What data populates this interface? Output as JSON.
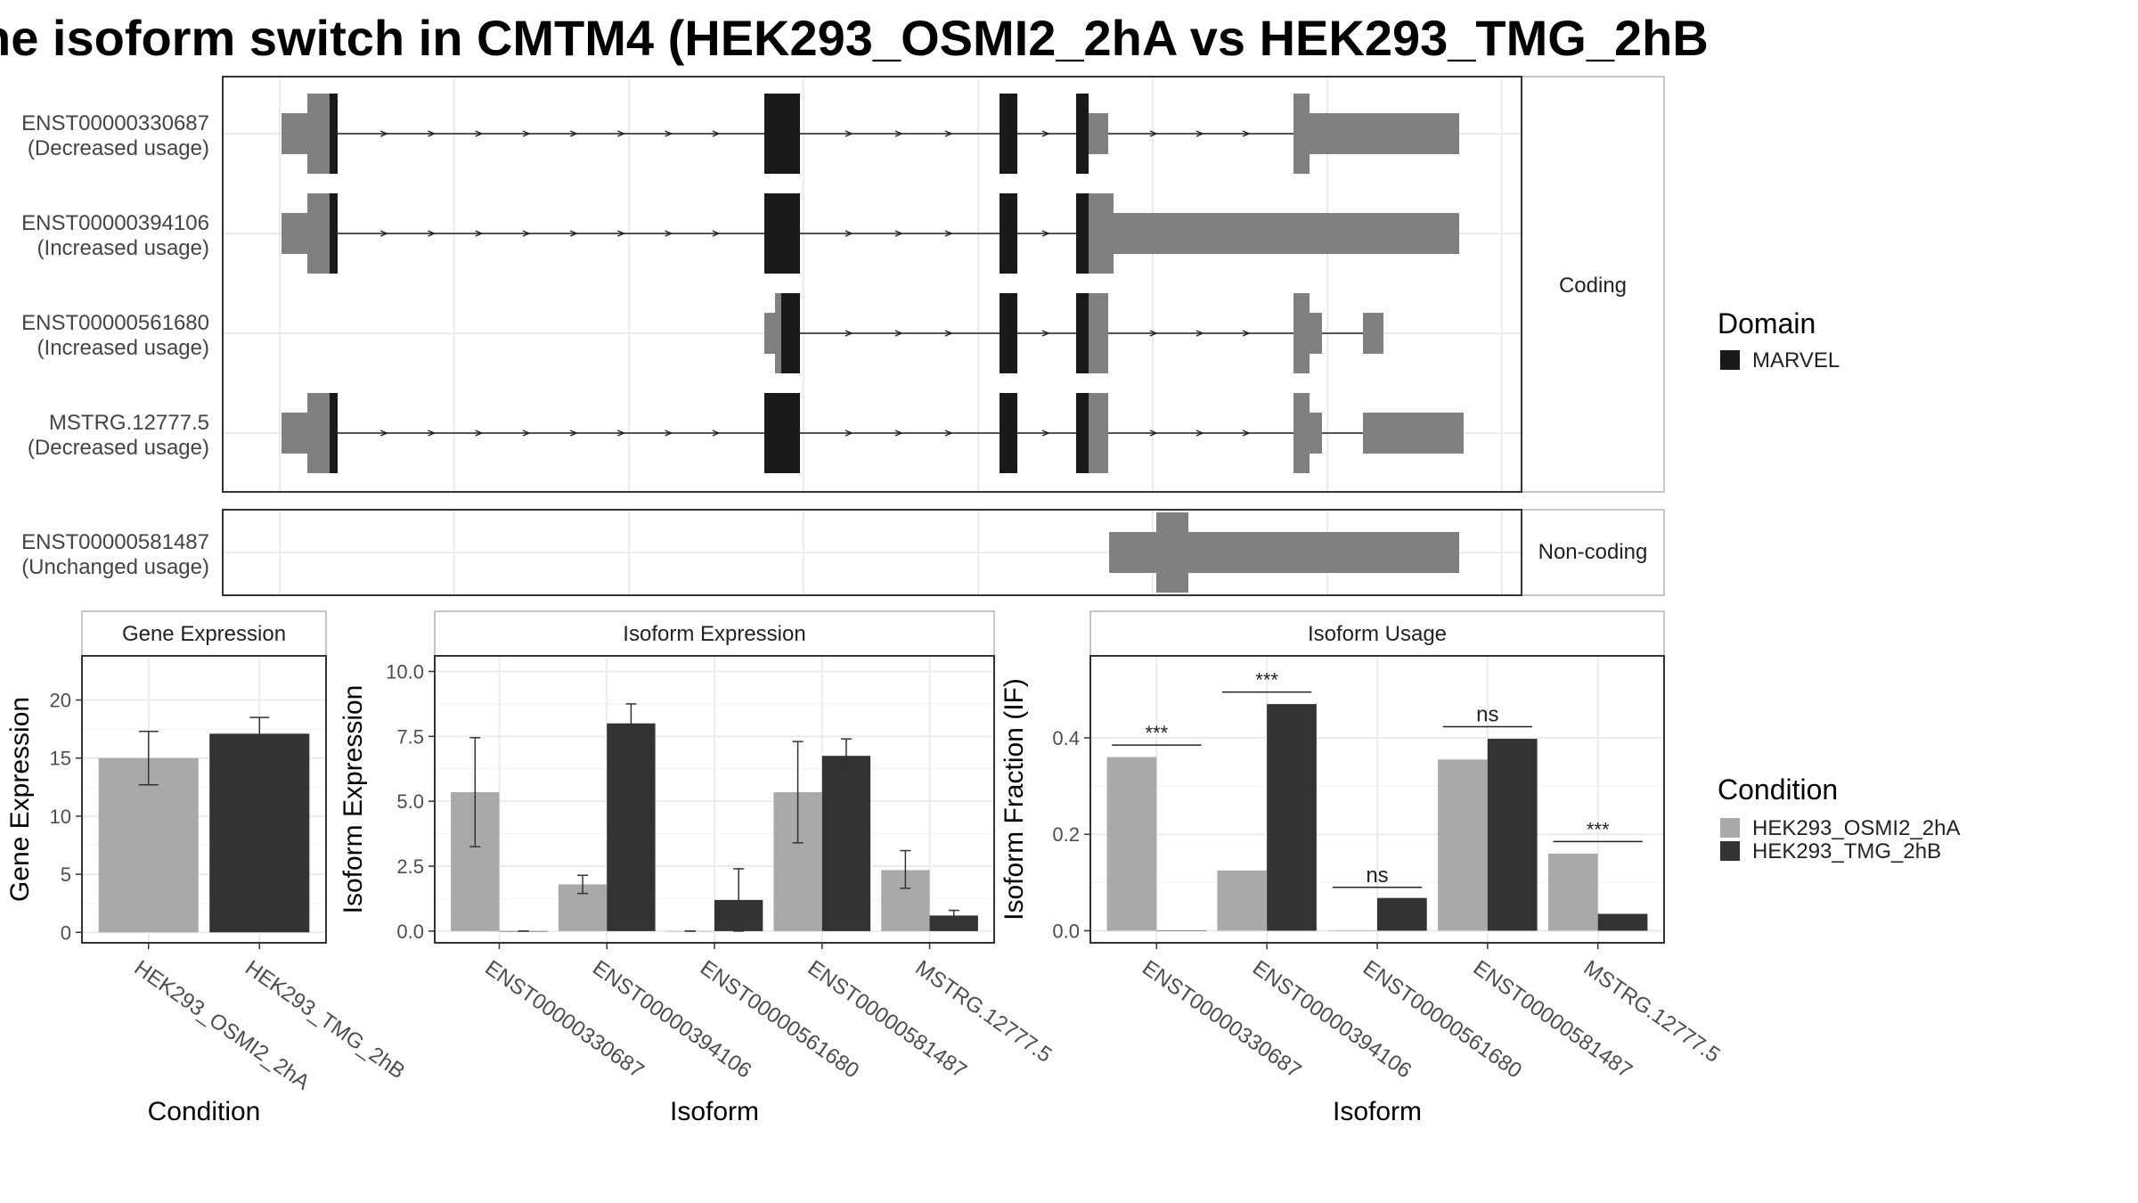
{
  "title": "he isoform switch in CMTM4 (HEK293_OSMI2_2hA vs HEK293_TMG_2hB",
  "colors": {
    "exon_grey": "#808080",
    "domain": "#191919",
    "cond1": "#a9a9a9",
    "cond2": "#333333",
    "grid": "#ebebeb",
    "strip": "#ffffff",
    "border": "#333333"
  },
  "domain_legend": {
    "title": "Domain",
    "items": [
      {
        "label": "MARVEL",
        "color": "#191919"
      }
    ]
  },
  "condition_legend": {
    "title": "Condition",
    "items": [
      {
        "label": "HEK293_OSMI2_2hA",
        "color": "#a9a9a9"
      },
      {
        "label": "HEK293_TMG_2hB",
        "color": "#333333"
      }
    ]
  },
  "transcript_panels": [
    {
      "strip": "Coding",
      "transcripts": [
        {
          "id": "ENST00000330687",
          "usage": "(Decreased usage)"
        },
        {
          "id": "ENST00000394106",
          "usage": "(Increased usage)"
        },
        {
          "id": "ENST00000561680",
          "usage": "(Increased usage)"
        },
        {
          "id": "MSTRG.12777.5",
          "usage": "(Decreased usage)"
        }
      ]
    },
    {
      "strip": "Non-coding",
      "transcripts": [
        {
          "id": "ENST00000581487",
          "usage": "(Unchanged usage)"
        }
      ]
    }
  ],
  "chart_data": [
    {
      "type": "bar",
      "title": "Gene Expression",
      "xlabel": "Condition",
      "ylabel": "Gene Expression",
      "categories": [
        "HEK293_OSMI2_2hA",
        "HEK293_TMG_2hB"
      ],
      "values": [
        15.0,
        17.1
      ],
      "error_low": [
        12.7,
        15.7
      ],
      "error_high": [
        17.3,
        18.5
      ],
      "ylim": [
        -0.9,
        23.8
      ],
      "yticks": [
        0,
        5,
        10,
        15,
        20
      ],
      "ytick_labels": [
        "0",
        "5",
        "10",
        "15",
        "20"
      ],
      "grid": true
    },
    {
      "type": "bar",
      "title": "Isoform Expression",
      "xlabel": "Isoform",
      "ylabel": "Isoform Expression",
      "categories": [
        "ENST00000330687",
        "ENST00000394106",
        "ENST00000561680",
        "ENST00000581487",
        "MSTRG.12777.5"
      ],
      "series": [
        {
          "name": "HEK293_OSMI2_2hA",
          "values": [
            5.35,
            1.8,
            0.0,
            5.35,
            2.35
          ],
          "error_low": [
            3.25,
            1.45,
            0.0,
            3.4,
            1.65
          ],
          "error_high": [
            7.45,
            2.15,
            0.0,
            7.3,
            3.1
          ]
        },
        {
          "name": "HEK293_TMG_2hB",
          "values": [
            0.0,
            8.0,
            1.2,
            6.75,
            0.6
          ],
          "error_low": [
            0.0,
            7.2,
            0.0,
            6.1,
            0.4
          ],
          "error_high": [
            0.0,
            8.75,
            2.4,
            7.4,
            0.8
          ]
        }
      ],
      "ylim": [
        -0.45,
        10.6
      ],
      "yticks": [
        0,
        2.5,
        5,
        7.5,
        10
      ],
      "ytick_labels": [
        "0.0",
        "2.5",
        "5.0",
        "7.5",
        "10.0"
      ],
      "grid": true
    },
    {
      "type": "bar",
      "title": "Isoform Usage",
      "xlabel": "Isoform",
      "ylabel": "Isoform Fraction (IF)",
      "categories": [
        "ENST00000330687",
        "ENST00000394106",
        "ENST00000561680",
        "ENST00000581487",
        "MSTRG.12777.5"
      ],
      "series": [
        {
          "name": "HEK293_OSMI2_2hA",
          "values": [
            0.36,
            0.125,
            0.0,
            0.355,
            0.16
          ]
        },
        {
          "name": "HEK293_TMG_2hB",
          "values": [
            0.0,
            0.47,
            0.068,
            0.398,
            0.035
          ]
        }
      ],
      "significance": [
        {
          "label": "***",
          "y": 0.385
        },
        {
          "label": "***",
          "y": 0.495
        },
        {
          "label": "ns",
          "y": 0.09
        },
        {
          "label": "ns",
          "y": 0.423
        },
        {
          "label": "***",
          "y": 0.185
        }
      ],
      "ylim": [
        -0.025,
        0.57
      ],
      "yticks": [
        0,
        0.2,
        0.4
      ],
      "ytick_labels": [
        "0.0",
        "0.2",
        "0.4"
      ],
      "grid": true
    }
  ]
}
